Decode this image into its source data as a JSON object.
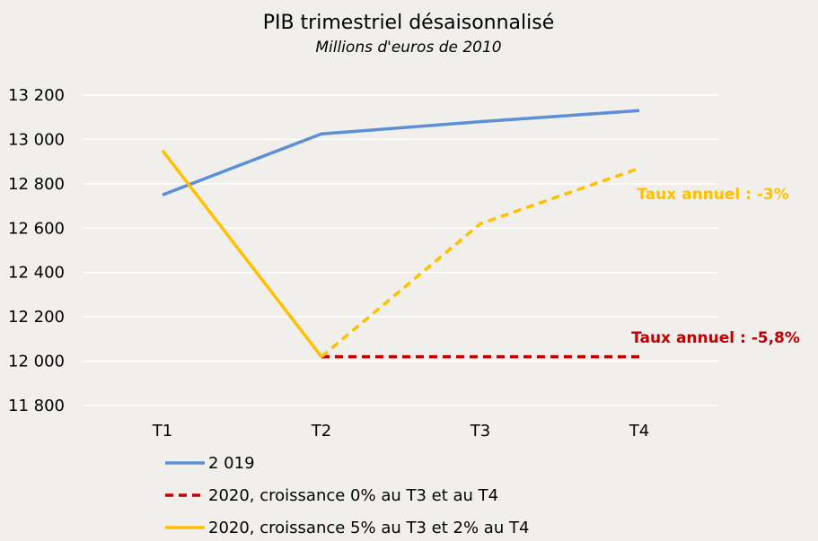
{
  "chart_data": {
    "type": "line",
    "title": "PIB trimestriel désaisonnalisé",
    "subtitle": "Millions d'euros de 2010",
    "categories": [
      "T1",
      "T2",
      "T3",
      "T4"
    ],
    "ylim": [
      11800,
      13200
    ],
    "yticks": [
      11800,
      12000,
      12200,
      12400,
      12600,
      12800,
      13000,
      13200
    ],
    "ytick_labels": [
      "11 800",
      "12 000",
      "12 200",
      "12 400",
      "12 600",
      "12 800",
      "13 000",
      "13 200"
    ],
    "grid": "horizontal",
    "legend": "bottom",
    "series": [
      {
        "name": "2 019",
        "values": [
          12750,
          13025,
          13080,
          13130
        ],
        "color": "#5b8fd6",
        "style": "solid"
      },
      {
        "name": "2020, croissance 0% au T3 et au T4",
        "values": [
          null,
          12020,
          12020,
          12020
        ],
        "color": "#c00000",
        "style": "dashed"
      },
      {
        "name": "2020, croissance 5% au T3 et 2% au T4",
        "values": [
          12950,
          12020,
          12620,
          12870
        ],
        "color": "#ffc000",
        "style": "solid-then-dashed",
        "dashed_from_index": 1
      }
    ],
    "annotations": [
      {
        "text": "Taux annuel : -3%",
        "color": "#ffc000"
      },
      {
        "text": "Taux annuel : -5,8%",
        "color": "#c00000"
      }
    ]
  }
}
